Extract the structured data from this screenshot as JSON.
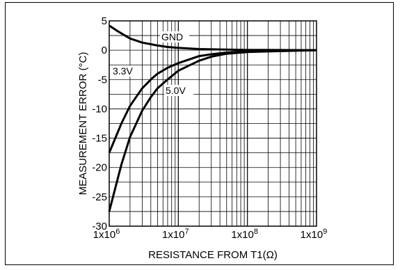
{
  "chart_data": {
    "type": "line",
    "title": "",
    "xlabel": "RESISTANCE FROM T1(Ω)",
    "ylabel": "MEASUREMENT ERROR (°C)",
    "xscale": "log",
    "xlim": [
      1000000,
      1000000000
    ],
    "ylim": [
      -30,
      5
    ],
    "grid": true,
    "x_ticks": [
      {
        "value": 1000000,
        "base": "1x10",
        "exp": "6"
      },
      {
        "value": 10000000,
        "base": "1x10",
        "exp": "7"
      },
      {
        "value": 100000000,
        "base": "1x10",
        "exp": "8"
      },
      {
        "value": 1000000000,
        "base": "1x10",
        "exp": "9"
      }
    ],
    "y_ticks": [
      "5",
      "0",
      "-5",
      "-10",
      "-15",
      "-20",
      "-25",
      "-30"
    ],
    "series": [
      {
        "name": "GND",
        "x": [
          1000000,
          1300000,
          2000000,
          3000000,
          5000000,
          7000000,
          10000000,
          20000000,
          50000000,
          100000000,
          1000000000
        ],
        "y": [
          4.2,
          3.3,
          2.0,
          1.3,
          0.8,
          0.55,
          0.4,
          0.2,
          0.1,
          0.05,
          0
        ]
      },
      {
        "name": "3.3V",
        "x": [
          1000000,
          1500000,
          2000000,
          3000000,
          4000000,
          5000000,
          7000000,
          10000000,
          15000000,
          20000000,
          30000000,
          50000000,
          100000000,
          1000000000
        ],
        "y": [
          -17.5,
          -12.5,
          -9.5,
          -6.5,
          -5.0,
          -4.0,
          -3.0,
          -2.2,
          -1.5,
          -1.0,
          -0.7,
          -0.4,
          -0.15,
          0
        ]
      },
      {
        "name": "5.0V",
        "x": [
          1000000,
          1500000,
          2000000,
          3000000,
          4000000,
          5000000,
          7000000,
          10000000,
          15000000,
          20000000,
          30000000,
          50000000,
          100000000,
          1000000000
        ],
        "y": [
          -27.5,
          -19.5,
          -14.8,
          -10.3,
          -8.0,
          -6.5,
          -5.0,
          -3.5,
          -2.5,
          -1.8,
          -1.1,
          -0.6,
          -0.3,
          0
        ]
      }
    ],
    "annotations": [
      "GND",
      "3.3V",
      "5.0V"
    ]
  }
}
